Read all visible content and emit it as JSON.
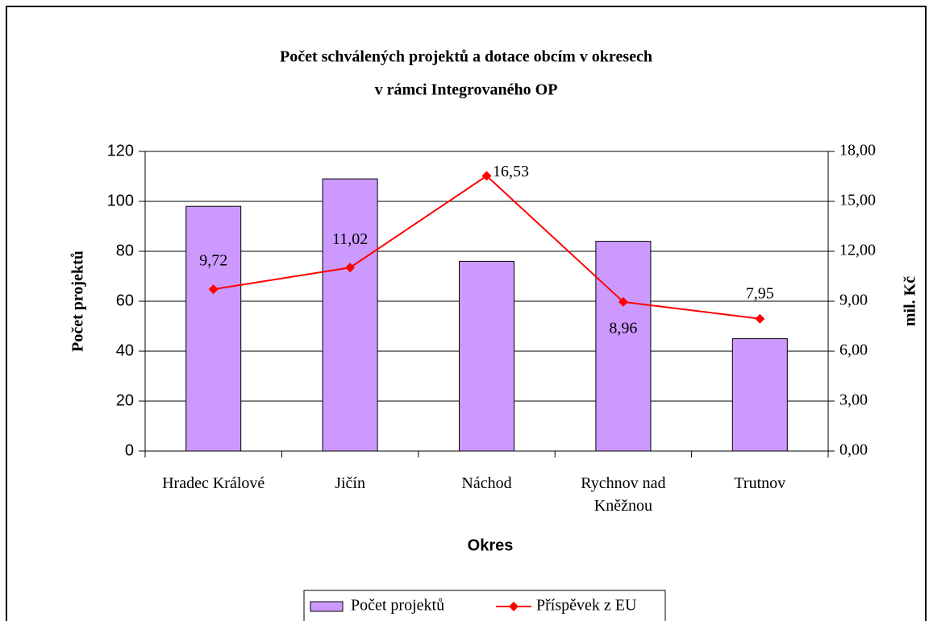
{
  "chart_data": {
    "type": "bar+line",
    "title": [
      "Počet schválených projektů a dotace obcím v okresech",
      "v rámci Integrovaného OP"
    ],
    "x_label": "Okres",
    "y_label": "Počet projektů",
    "y2_label": "mil. Kč",
    "categories": [
      "Hradec Králové",
      "Jičín",
      "Náchod",
      "Rychnov nad Kněžnou",
      "Trutnov"
    ],
    "series": [
      {
        "name": "Počet projektů",
        "type": "bar",
        "color": "#cc99ff",
        "values": [
          98,
          109,
          76,
          84,
          45
        ]
      },
      {
        "name": "Příspěvek z EU",
        "type": "line",
        "axis": "y2",
        "color": "#ff0000",
        "values": [
          9.72,
          11.02,
          16.53,
          8.96,
          7.95
        ],
        "value_labels": [
          "9,72",
          "11,02",
          "16,53",
          "8,96",
          "7,95"
        ]
      }
    ],
    "ylim": [
      0,
      120
    ],
    "yticks": [
      0,
      20,
      40,
      60,
      80,
      100,
      120
    ],
    "y2lim": [
      0,
      18
    ],
    "y2ticks": [
      {
        "value": 0,
        "label": "0,00"
      },
      {
        "value": 3,
        "label": "3,00"
      },
      {
        "value": 6,
        "label": "6,00"
      },
      {
        "value": 9,
        "label": "9,00"
      },
      {
        "value": 12,
        "label": "12,00"
      },
      {
        "value": 15,
        "label": "15,00"
      },
      {
        "value": 18,
        "label": "18,00"
      }
    ],
    "grid": true,
    "legend": "bottom"
  }
}
